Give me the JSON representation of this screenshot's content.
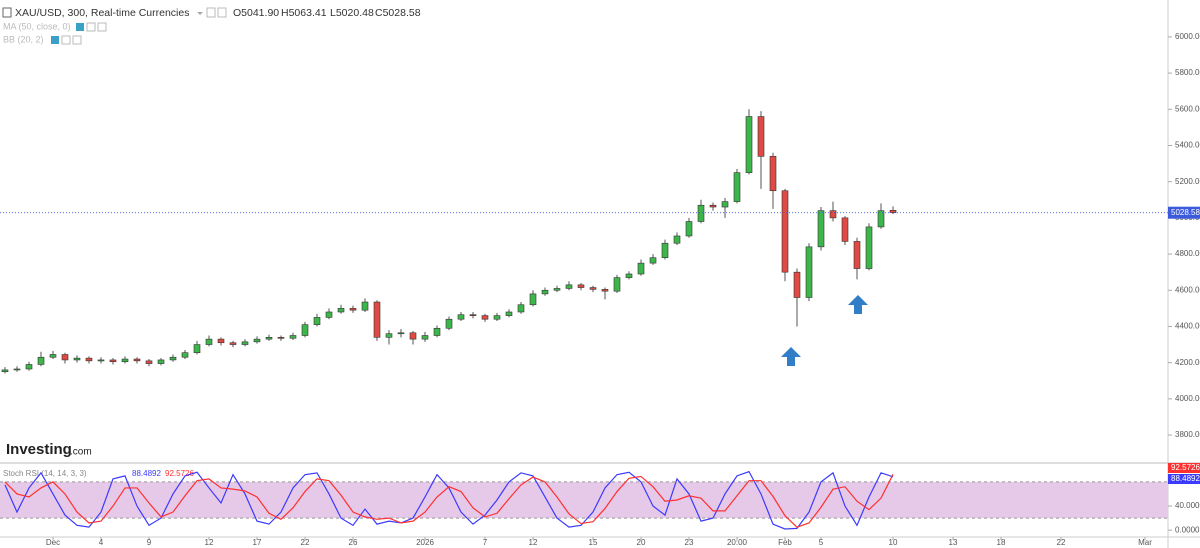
{
  "chart_data": {
    "type": "candlestick",
    "header": {
      "symbol": "XAU/USD, 300, Real-time Currencies",
      "ohlc": [
        "O5041.90",
        "H5063.41",
        "L5020.48",
        "C5028.58"
      ],
      "studies": [
        "MA (50, close, 0)",
        "BB (20, 2)"
      ]
    },
    "logo": [
      "Investing",
      ".com"
    ],
    "up_color": "#3cb54a",
    "down_color": "#e14a42",
    "price_line_color": "#3b5bdb",
    "categories": [
      null,
      null,
      null,
      null,
      "Dec",
      null,
      null,
      null,
      "4",
      null,
      null,
      null,
      "9",
      null,
      null,
      null,
      null,
      "12",
      null,
      null,
      null,
      "17",
      null,
      null,
      null,
      "22",
      null,
      null,
      null,
      "26",
      null,
      null,
      null,
      null,
      null,
      "2026",
      null,
      null,
      null,
      null,
      "7",
      null,
      null,
      null,
      "12",
      null,
      null,
      null,
      null,
      "15",
      null,
      null,
      null,
      "20",
      null,
      null,
      null,
      "23",
      null,
      null,
      null,
      "20:00",
      null,
      null,
      null,
      "Feb",
      null,
      null,
      "5",
      null,
      null,
      null,
      null,
      null,
      "10",
      null,
      null,
      null,
      null,
      "13",
      null,
      null,
      null,
      "18",
      null,
      null,
      null,
      null,
      "22",
      null,
      null,
      null,
      null,
      null,
      null,
      "Mar"
    ],
    "open": [
      4150,
      4160,
      4165,
      4190,
      4230,
      4245,
      4215,
      4225,
      4210,
      4215,
      4205,
      4220,
      4210,
      4195,
      4215,
      4230,
      4255,
      4300,
      4330,
      4310,
      4300,
      4315,
      4330,
      4340,
      4335,
      4350,
      4410,
      4450,
      4480,
      4500,
      4490,
      4535,
      4340,
      4360,
      4365,
      4330,
      4350,
      4390,
      4440,
      4465,
      4460,
      4440,
      4460,
      4480,
      4520,
      4580,
      4600,
      4610,
      4630,
      4615,
      4605,
      4595,
      4670,
      4690,
      4750,
      4780,
      4860,
      4900,
      4980,
      5070,
      5060,
      5090,
      5250,
      5560,
      5340,
      5150,
      4700,
      4560,
      4840,
      5040,
      5000,
      4870,
      4720,
      4950,
      5041.9,
      null,
      null,
      null,
      null,
      null,
      null,
      null,
      null,
      null,
      null,
      null,
      null,
      null,
      null,
      null,
      null,
      null,
      null,
      null,
      null,
      null
    ],
    "high": [
      4175,
      4180,
      4205,
      4260,
      4265,
      4255,
      4240,
      4235,
      4230,
      4225,
      4235,
      4230,
      4220,
      4225,
      4245,
      4270,
      4320,
      4350,
      4340,
      4320,
      4330,
      4345,
      4355,
      4350,
      4365,
      4425,
      4470,
      4500,
      4520,
      4515,
      4555,
      4545,
      4380,
      4385,
      4375,
      4370,
      4405,
      4455,
      4480,
      4480,
      4470,
      4475,
      4495,
      4535,
      4600,
      4615,
      4625,
      4650,
      4640,
      4625,
      4615,
      4685,
      4705,
      4770,
      4800,
      4880,
      4920,
      5000,
      5100,
      5085,
      5110,
      5270,
      5600,
      5590,
      5360,
      5160,
      4720,
      4860,
      5060,
      5090,
      5010,
      4890,
      4970,
      5080,
      5063.41,
      null,
      null,
      null,
      null,
      null,
      null,
      null,
      null,
      null,
      null,
      null,
      null,
      null,
      null,
      null,
      null,
      null,
      null,
      null,
      null,
      null
    ],
    "low": [
      4140,
      4150,
      4155,
      4180,
      4220,
      4195,
      4200,
      4195,
      4195,
      4190,
      4195,
      4195,
      4180,
      4185,
      4205,
      4220,
      4245,
      4290,
      4295,
      4285,
      4290,
      4305,
      4320,
      4320,
      4325,
      4340,
      4400,
      4440,
      4470,
      4475,
      4480,
      4320,
      4300,
      4340,
      4300,
      4315,
      4340,
      4380,
      4430,
      4445,
      4425,
      4430,
      4450,
      4470,
      4510,
      4570,
      4590,
      4600,
      4600,
      4590,
      4550,
      4585,
      4660,
      4680,
      4740,
      4770,
      4850,
      4890,
      4970,
      5040,
      5000,
      5080,
      5240,
      5160,
      5050,
      4650,
      4400,
      4540,
      4820,
      4980,
      4850,
      4660,
      4710,
      4940,
      5020.48,
      null,
      null,
      null,
      null,
      null,
      null,
      null,
      null,
      null,
      null,
      null,
      null,
      null,
      null,
      null,
      null,
      null,
      null,
      null,
      null,
      null
    ],
    "close": [
      4160,
      4165,
      4190,
      4230,
      4245,
      4215,
      4225,
      4210,
      4215,
      4205,
      4220,
      4210,
      4195,
      4215,
      4230,
      4255,
      4300,
      4330,
      4310,
      4300,
      4315,
      4330,
      4340,
      4335,
      4350,
      4410,
      4450,
      4480,
      4500,
      4490,
      4535,
      4340,
      4360,
      4365,
      4330,
      4350,
      4390,
      4440,
      4465,
      4460,
      4440,
      4460,
      4480,
      4520,
      4580,
      4600,
      4610,
      4630,
      4615,
      4605,
      4595,
      4670,
      4690,
      4750,
      4780,
      4860,
      4900,
      4980,
      5070,
      5060,
      5090,
      5250,
      5560,
      5340,
      5150,
      4700,
      4560,
      4840,
      5040,
      5000,
      4870,
      4720,
      4950,
      5040,
      5028.58,
      null,
      null,
      null,
      null,
      null,
      null,
      null,
      null,
      null,
      null,
      null,
      null,
      null,
      null,
      null,
      null,
      null,
      null,
      null,
      null,
      null
    ],
    "ylim": [
      3651,
      6204
    ],
    "yticks": [
      {
        "value": 3800,
        "label": "3800.00"
      },
      {
        "value": 4000,
        "label": "4000.00"
      },
      {
        "value": 4200,
        "label": "4200.00"
      },
      {
        "value": 4400,
        "label": "4400.00"
      },
      {
        "value": 4600,
        "label": "4600.00"
      },
      {
        "value": 4800,
        "label": "4800.00"
      },
      {
        "value": 5000,
        "label": "5000.00"
      },
      {
        "value": 5200,
        "label": "5200.00"
      },
      {
        "value": 5400,
        "label": "5400.00"
      },
      {
        "value": 5600,
        "label": "5600.00"
      },
      {
        "value": 5800,
        "label": "5800.00"
      },
      {
        "value": 6000,
        "label": "6000.00"
      }
    ],
    "stoch": {
      "title": "Stoch RSI (14, 14, 3, 3)",
      "ylim": [
        -8,
        108
      ],
      "yticks": [
        {
          "value": 0,
          "label": "0.0000"
        },
        {
          "value": 40,
          "label": "40.0000"
        }
      ],
      "bands": [
        20,
        80
      ],
      "band_color": "#e6c8e8",
      "series": [
        {
          "color": "#3b3bff",
          "values": [
            75,
            30,
            70,
            95,
            60,
            25,
            8,
            5,
            30,
            85,
            90,
            40,
            8,
            20,
            60,
            90,
            96,
            70,
            45,
            92,
            60,
            15,
            10,
            30,
            70,
            92,
            95,
            60,
            20,
            8,
            35,
            10,
            15,
            12,
            20,
            55,
            92,
            70,
            30,
            10,
            25,
            50,
            80,
            95,
            90,
            55,
            20,
            5,
            8,
            30,
            70,
            92,
            96,
            80,
            40,
            25,
            85,
            60,
            15,
            20,
            60,
            90,
            97,
            60,
            10,
            2,
            3,
            30,
            80,
            95,
            40,
            8,
            55,
            95,
            88.4892,
            null,
            null,
            null,
            null,
            null,
            null,
            null,
            null,
            null,
            null,
            null,
            null,
            null,
            null,
            null,
            null,
            null,
            null,
            null,
            null,
            null
          ]
        },
        {
          "color": "#ff3030",
          "values": [
            80,
            60,
            55,
            70,
            80,
            60,
            30,
            12,
            15,
            40,
            70,
            70,
            45,
            22,
            30,
            57,
            82,
            85,
            70,
            68,
            65,
            55,
            28,
            18,
            37,
            64,
            85,
            82,
            58,
            30,
            22,
            18,
            20,
            12,
            15,
            30,
            55,
            72,
            64,
            37,
            22,
            28,
            52,
            75,
            88,
            80,
            55,
            27,
            11,
            14,
            36,
            64,
            86,
            89,
            72,
            48,
            50,
            57,
            53,
            32,
            32,
            57,
            82,
            82,
            56,
            24,
            5,
            12,
            38,
            68,
            72,
            48,
            34,
            53,
            92.5726,
            null,
            null,
            null,
            null,
            null,
            null,
            null,
            null,
            null,
            null,
            null,
            null,
            null,
            null,
            null,
            null,
            null,
            null,
            null,
            null,
            null
          ]
        }
      ]
    }
  }
}
